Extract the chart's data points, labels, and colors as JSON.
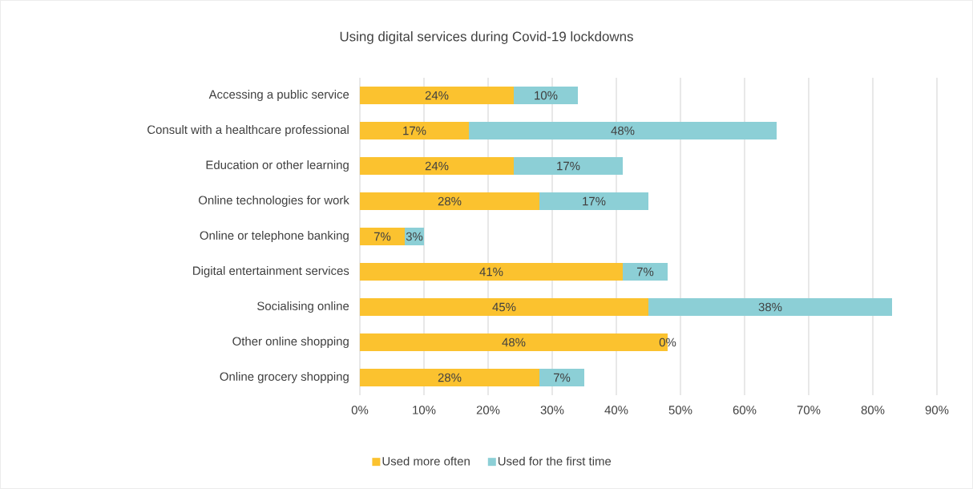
{
  "chart_data": {
    "type": "bar",
    "orientation": "horizontal",
    "stacked": true,
    "title": "Using digital services during Covid-19 lockdowns",
    "categories": [
      "Accessing a public service",
      "Consult with a healthcare professional",
      "Education or other learning",
      "Online technologies for work",
      "Online or telephone banking",
      "Digital entertainment services",
      "Socialising online",
      "Other online shopping",
      "Online grocery shopping"
    ],
    "series": [
      {
        "name": "Used more often",
        "color": "#fbc22f",
        "values": [
          24,
          17,
          24,
          28,
          7,
          41,
          45,
          48,
          28
        ],
        "value_labels": [
          "24%",
          "17%",
          "24%",
          "28%",
          "7%",
          "41%",
          "45%",
          "48%",
          "28%"
        ]
      },
      {
        "name": "Used for the first time",
        "color": "#8ccfd6",
        "values": [
          10,
          48,
          17,
          17,
          3,
          7,
          38,
          0,
          7
        ],
        "value_labels": [
          "10%",
          "48%",
          "17%",
          "17%",
          "3%",
          "7%",
          "38%",
          "0%",
          "7%"
        ]
      }
    ],
    "xlim": [
      0,
      90
    ],
    "xticks": [
      {
        "value": 0,
        "label": "0%"
      },
      {
        "value": 10,
        "label": "10%"
      },
      {
        "value": 20,
        "label": "20%"
      },
      {
        "value": 30,
        "label": "30%"
      },
      {
        "value": 40,
        "label": "40%"
      },
      {
        "value": 50,
        "label": "50%"
      },
      {
        "value": 60,
        "label": "60%"
      },
      {
        "value": 70,
        "label": "70%"
      },
      {
        "value": 80,
        "label": "80%"
      },
      {
        "value": 90,
        "label": "90%"
      }
    ],
    "grid": "x",
    "legend": "bottom"
  }
}
